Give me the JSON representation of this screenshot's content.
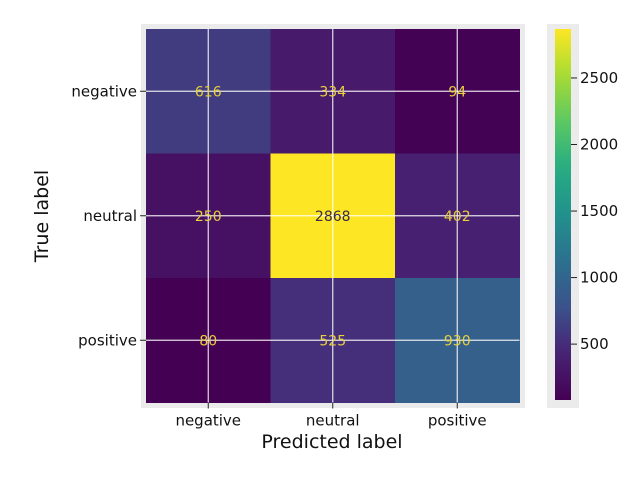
{
  "chart_data": {
    "type": "heatmap",
    "title": "",
    "xlabel": "Predicted label",
    "ylabel": "True label",
    "x_categories": [
      "negative",
      "neutral",
      "positive"
    ],
    "y_categories": [
      "negative",
      "neutral",
      "positive"
    ],
    "values": [
      [
        616,
        334,
        94
      ],
      [
        250,
        2868,
        402
      ],
      [
        80,
        525,
        930
      ]
    ],
    "colormap": "viridis",
    "colorbar": {
      "min": 80,
      "max": 2868,
      "ticks": [
        500,
        1000,
        1500,
        2000,
        2500
      ],
      "tick_labels": [
        "500",
        "1000",
        "1500",
        "2000",
        "2500"
      ]
    },
    "grid": true,
    "cell_text_colors": {
      "on_dark": "#e7d13d",
      "on_light": "#3b2b4a"
    },
    "background_panel_color": "#ebebeb",
    "grid_color": "#ffffff"
  }
}
